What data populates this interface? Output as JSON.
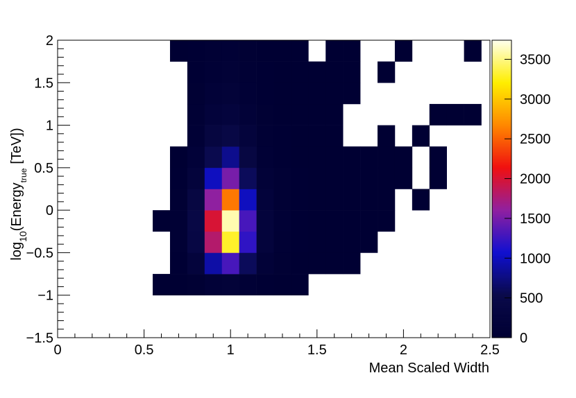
{
  "chart_data": {
    "type": "heatmap",
    "xlabel": "Mean Scaled Width",
    "ylabel_parts": [
      "log",
      "10",
      "(Energy",
      "true",
      "[TeV])"
    ],
    "xlim": [
      0,
      2.5
    ],
    "ylim": [
      -1.5,
      2
    ],
    "zlim": [
      0,
      3740
    ],
    "xticks": [
      0,
      0.5,
      1,
      1.5,
      2,
      2.5
    ],
    "yticks": [
      {
        "value": -1.5,
        "label": "−1.5"
      },
      {
        "value": -1,
        "label": "−1"
      },
      {
        "value": -0.5,
        "label": "−0.5"
      },
      0,
      0.5,
      1,
      1.5,
      2
    ],
    "zticks": [
      0,
      500,
      1000,
      1500,
      2000,
      2500,
      3000,
      3500
    ],
    "colorscale": [
      "#000033",
      "#0a0a4a",
      "#1010d0",
      "#9020a0",
      "#f01010",
      "#ff8800",
      "#ffee00",
      "#ffffee"
    ],
    "x_bins": [
      0.55,
      0.65,
      0.75,
      0.85,
      0.95,
      1.05,
      1.15,
      1.25,
      1.35,
      1.45,
      1.55,
      1.65,
      1.75,
      1.85,
      1.95,
      2.05,
      2.15,
      2.25,
      2.35,
      2.45
    ],
    "y_bins": [
      -1,
      -0.75,
      -0.5,
      -0.25,
      0,
      0.25,
      0.5,
      0.75,
      1,
      1.25,
      1.5,
      1.75,
      2
    ],
    "z": [
      [
        1,
        5,
        30,
        120,
        150,
        80,
        20,
        5,
        2,
        null,
        null,
        null,
        null,
        null,
        null,
        null,
        null,
        null,
        null
      ],
      [
        null,
        20,
        200,
        900,
        1300,
        600,
        120,
        30,
        8,
        3,
        1,
        1,
        null,
        null,
        null,
        null,
        null,
        null,
        null
      ],
      [
        null,
        40,
        400,
        1800,
        3300,
        1200,
        200,
        50,
        15,
        6,
        3,
        1,
        1,
        null,
        null,
        null,
        null,
        null,
        null
      ],
      [
        2,
        40,
        420,
        2000,
        3600,
        1300,
        220,
        60,
        20,
        8,
        4,
        2,
        1,
        1,
        null,
        null,
        null,
        null,
        null
      ],
      [
        null,
        30,
        350,
        1600,
        2600,
        1000,
        180,
        50,
        16,
        7,
        3,
        2,
        1,
        1,
        null,
        1,
        null,
        null,
        null
      ],
      [
        null,
        15,
        220,
        1000,
        1500,
        600,
        120,
        35,
        12,
        5,
        3,
        2,
        1,
        1,
        1,
        null,
        1,
        null,
        null
      ],
      [
        null,
        5,
        130,
        550,
        800,
        350,
        80,
        25,
        9,
        4,
        2,
        1,
        1,
        1,
        1,
        null,
        1,
        null,
        null
      ],
      [
        null,
        null,
        80,
        300,
        420,
        200,
        50,
        15,
        6,
        3,
        1,
        null,
        null,
        1,
        null,
        1,
        null,
        null,
        null
      ],
      [
        null,
        null,
        50,
        180,
        240,
        120,
        30,
        10,
        4,
        2,
        1,
        null,
        null,
        null,
        null,
        null,
        1,
        1,
        1
      ],
      [
        null,
        null,
        30,
        110,
        140,
        70,
        20,
        7,
        3,
        1,
        1,
        1,
        null,
        null,
        null,
        null,
        null,
        null,
        null
      ],
      [
        null,
        null,
        20,
        70,
        90,
        45,
        12,
        4,
        2,
        1,
        1,
        1,
        null,
        1,
        null,
        null,
        null,
        null,
        null
      ],
      [
        null,
        1,
        15,
        50,
        60,
        30,
        8,
        3,
        1,
        null,
        1,
        1,
        null,
        null,
        1,
        null,
        null,
        null,
        1
      ]
    ]
  }
}
